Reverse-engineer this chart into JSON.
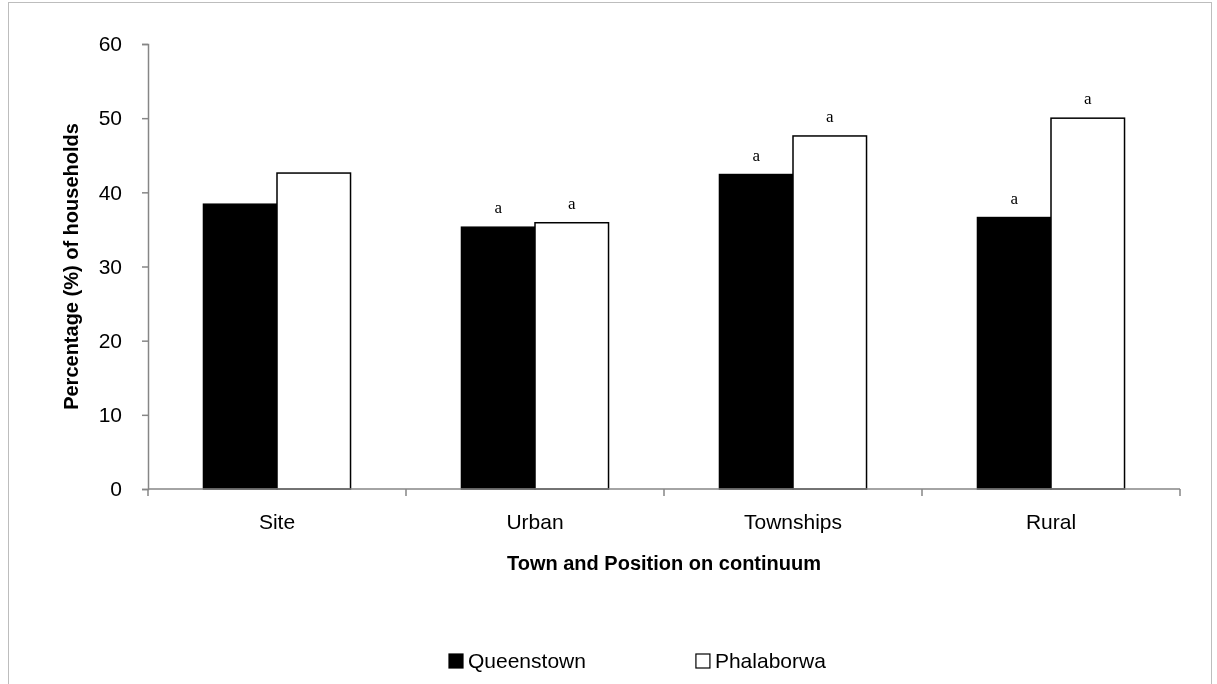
{
  "chart_data": {
    "type": "bar",
    "xlabel": "Town and Position on continuum",
    "ylabel": "Percentage (%) of households",
    "categories": [
      "Site",
      "Urban",
      "Townships",
      "Rural"
    ],
    "series": [
      {
        "name": "Queenstown",
        "color": "#000000",
        "values": [
          38.4,
          35.3,
          42.4,
          36.6
        ],
        "value_labels": [
          null,
          "a",
          "a",
          "a"
        ]
      },
      {
        "name": "Phalaborwa",
        "color": "#ffffff",
        "values": [
          42.6,
          35.9,
          47.6,
          50.0
        ],
        "value_labels": [
          null,
          "a",
          "a",
          "a"
        ]
      }
    ],
    "ylim": [
      0,
      60
    ],
    "yticks": [
      0,
      10,
      20,
      30,
      40,
      50,
      60
    ],
    "legend": "bottom"
  }
}
